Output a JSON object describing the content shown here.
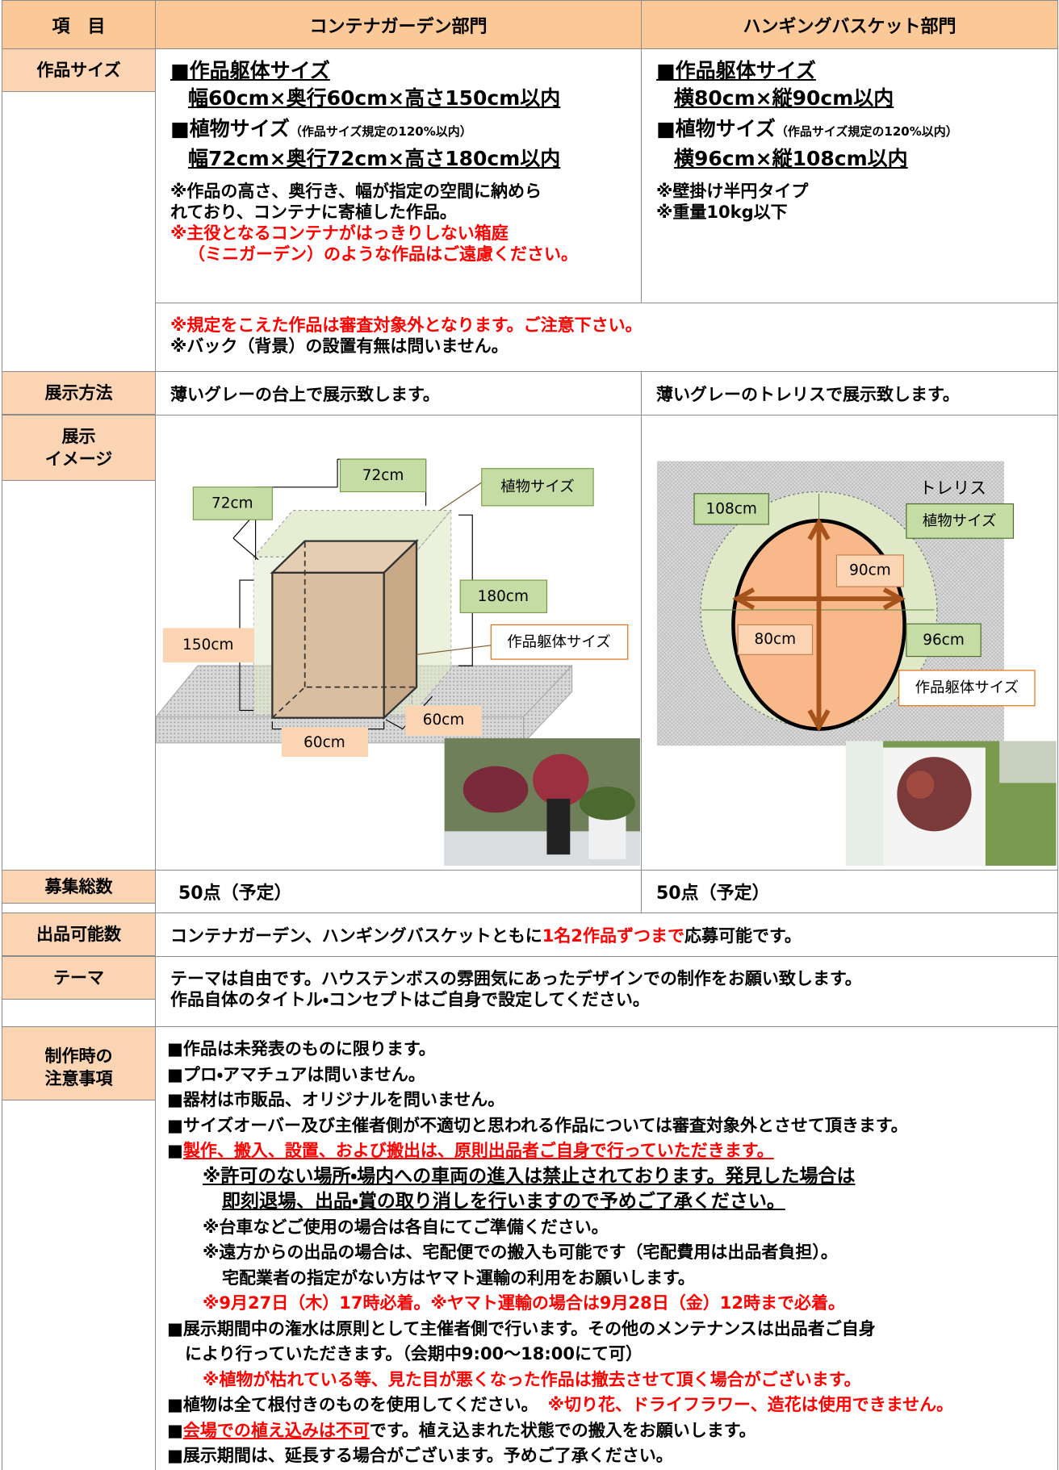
{
  "header": {
    "item": "項　目",
    "container": "コンテナガーデン部門",
    "hanging": "ハンギングバスケット部門"
  },
  "size": {
    "label": "作品サイズ",
    "container": {
      "frame_title": "■作品躯体サイズ",
      "frame_size": "幅60cm×奥行60cm×高さ150cm以内",
      "plant_title": "■植物サイズ",
      "plant_note": "（作品サイズ規定の120%以内）",
      "plant_size": "幅72cm×奥行72cm×高さ180cm以内",
      "notes": [
        "※作品の高さ、奥行き、幅が指定の空間に納めら",
        "れており、コンテナに寄植した作品。"
      ],
      "red_notes": [
        "※主役となるコンテナがはっきりしない箱庭",
        "（ミニガーデン）のような作品はご遠慮ください。"
      ]
    },
    "hanging": {
      "frame_title": "■作品躯体サイズ",
      "frame_size": "横80cm×縦90cm以内",
      "plant_title": "■植物サイズ",
      "plant_note": "（作品サイズ規定の120%以内）",
      "plant_size": "横96cm×縦108cm以内",
      "notes": [
        "※壁掛け半円タイプ",
        "※重量10kg以下"
      ]
    },
    "common": {
      "red": "※規定をこえた作品は審査対象外となります。ご注意下さい。",
      "black": "※バック（背景）の設置有無は問いません。"
    }
  },
  "display": {
    "label": "展示方法",
    "container": "薄いグレーの台上で展示致します。",
    "hanging": "薄いグレーのトレリスで展示致します。"
  },
  "image": {
    "label": "展示\nイメージ",
    "container": {
      "depth_plant": "72cm",
      "width_plant": "72cm",
      "plant": "植物サイズ",
      "height_plant": "180cm",
      "height_frame": "150cm",
      "frame": "作品躯体サイズ",
      "depth_frame": "60cm",
      "width_frame": "60cm"
    },
    "hanging": {
      "trellis": "トレリス",
      "height_plant": "108cm",
      "plant": "植物サイズ",
      "height_frame": "90cm",
      "width_frame": "80cm",
      "width_plant": "96cm",
      "frame": "作品躯体サイズ"
    }
  },
  "total": {
    "label": "募集総数",
    "container": "50点（予定）",
    "hanging": "50点（予定）"
  },
  "entries": {
    "label": "出品可能数",
    "before": "コンテナガーデン、ハンギングバスケットともに",
    "red": "1名2作品ずつまで",
    "after": "応募可能です。"
  },
  "theme": {
    "label": "テーマ",
    "lines": [
      "テーマは自由です。ハウステンボスの雰囲気にあったデザインでの制作をお願い致します。",
      "作品自体のタイトル・コンセプトはご自身で設定してください。"
    ]
  },
  "notes": {
    "label": "制作時の\n注意事項",
    "lines": [
      [
        "■作品は未発表のものに限ります。"
      ],
      [
        "■プロ・アマチュアは問いません。"
      ],
      [
        "■器材は市販品、オリジナルを問いません。"
      ],
      [
        "■サイズオーバー及び主催者側が不適切と思われる作品については審査対象外とさせて頂きます。"
      ],
      [
        "■",
        "製作、搬入、設置、および搬出は、原則出品者ご自身で行っていただきます。"
      ],
      [
        "※許可のない場所・場内への車両の進入は禁止されております。発見した場合は"
      ],
      [
        "即刻退場、出品・賞の取り消しを行いますので予めご了承ください。"
      ],
      [
        "※台車などご使用の場合は各自にてご準備ください。"
      ],
      [
        "※遠方からの出品の場合は、宅配便での搬入も可能です（宅配費用は出品者負担）。"
      ],
      [
        "宅配業者の指定がない方はヤマト運輸の利用をお願いします。"
      ],
      [
        "※9月27日（木）17時必着。※ヤマト運輸の場合は9月28日（金）12時まで必着。"
      ],
      [
        "■展示期間中の潅水は原則として主催者側で行います。その他のメンテナンスは出品者ご自身"
      ],
      [
        "により行っていただきます。（会期中9:00～18:00にて可）"
      ],
      [
        "※植物が枯れている等、見た目が悪くなった作品は撤去させて頂く場合がございます。"
      ],
      [
        "■植物は全て根付きのものを使用してください。",
        "※切り花、ドライフラワー、造花は使用できません。"
      ],
      [
        "■",
        "会場での植え込みは不可",
        "です。植え込まれた状態での搬入をお願いします。"
      ],
      [
        "■展示期間は、延長する場合がございます。予めご了承ください。"
      ]
    ]
  }
}
